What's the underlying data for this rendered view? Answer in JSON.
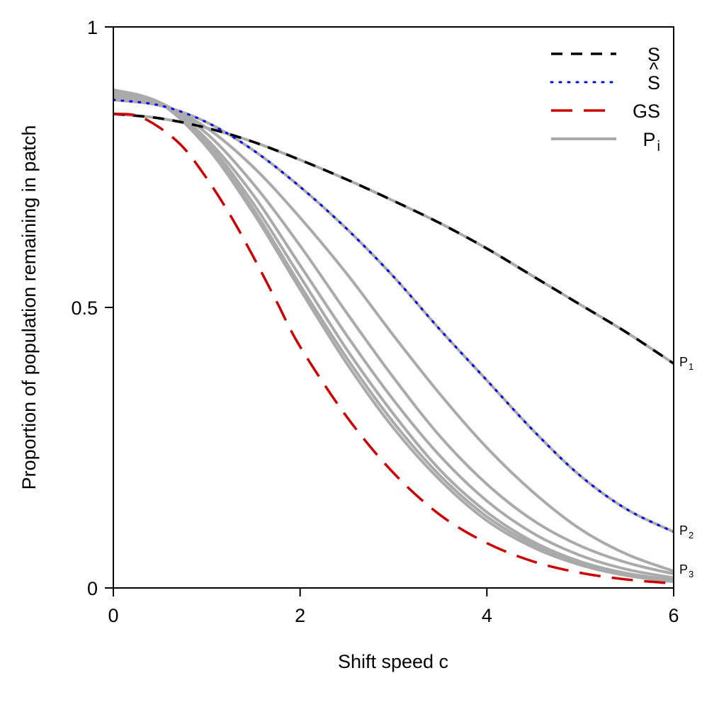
{
  "chart_data": {
    "type": "line",
    "xlabel": "Shift speed c",
    "ylabel": "Proportion of population remaining in patch",
    "xlim": [
      0,
      6
    ],
    "ylim": [
      0,
      1
    ],
    "x_ticks": [
      0,
      2,
      4,
      6
    ],
    "x_tick_labels": [
      "0",
      "2",
      "4",
      "6"
    ],
    "y_ticks": [
      0,
      0.5,
      1
    ],
    "y_tick_labels": [
      "0",
      "0.5",
      "1"
    ],
    "grid": false,
    "legend_position": "top-right",
    "legend": [
      {
        "key": "S",
        "label": "S",
        "color": "#000000",
        "style": "short-dash"
      },
      {
        "key": "Shat",
        "label": "S",
        "accent": "^",
        "color": "#0000ff",
        "style": "dotted"
      },
      {
        "key": "GS",
        "label": "GS",
        "color": "#cc0000",
        "style": "long-dash"
      },
      {
        "key": "Pi",
        "label": "P",
        "sub": "i",
        "color": "#aaaaaa",
        "style": "solid"
      }
    ],
    "end_labels": [
      {
        "base": "P",
        "sub": "1",
        "y": 0.4
      },
      {
        "base": "P",
        "sub": "2",
        "y": 0.1
      },
      {
        "base": "P",
        "sub": "3",
        "y": 0.03
      }
    ],
    "series": [
      {
        "name": "P",
        "style": "gray",
        "x": [
          0,
          0.5,
          1,
          1.5,
          2,
          2.5,
          3,
          3.5,
          4,
          4.5,
          5,
          5.5,
          6
        ],
        "values": [
          0.845,
          0.837,
          0.82,
          0.795,
          0.763,
          0.728,
          0.69,
          0.65,
          0.605,
          0.555,
          0.505,
          0.455,
          0.4
        ]
      },
      {
        "name": "P",
        "style": "gray",
        "x": [
          0,
          0.5,
          1,
          1.5,
          2,
          2.5,
          3,
          3.5,
          4,
          4.5,
          5,
          5.5,
          6
        ],
        "values": [
          0.87,
          0.86,
          0.83,
          0.78,
          0.715,
          0.64,
          0.555,
          0.46,
          0.37,
          0.28,
          0.2,
          0.14,
          0.1
        ]
      },
      {
        "name": "P",
        "style": "gray",
        "x": [
          0,
          0.5,
          1,
          1.5,
          2,
          2.5,
          3,
          3.5,
          4,
          4.5,
          5,
          5.5,
          6
        ],
        "values": [
          0.875,
          0.862,
          0.82,
          0.75,
          0.66,
          0.56,
          0.45,
          0.345,
          0.25,
          0.17,
          0.105,
          0.06,
          0.03
        ]
      },
      {
        "name": "P",
        "style": "gray",
        "x": [
          0,
          0.5,
          1,
          1.5,
          2,
          2.5,
          3,
          3.5,
          4,
          4.5,
          5,
          5.5,
          6
        ],
        "values": [
          0.88,
          0.865,
          0.81,
          0.72,
          0.61,
          0.49,
          0.375,
          0.27,
          0.185,
          0.12,
          0.075,
          0.045,
          0.025
        ]
      },
      {
        "name": "P",
        "style": "gray",
        "x": [
          0,
          0.5,
          1,
          1.5,
          2,
          2.5,
          3,
          3.5,
          4,
          4.5,
          5,
          5.5,
          6
        ],
        "values": [
          0.88,
          0.865,
          0.8,
          0.7,
          0.575,
          0.45,
          0.335,
          0.235,
          0.155,
          0.097,
          0.058,
          0.033,
          0.018
        ]
      },
      {
        "name": "P",
        "style": "gray",
        "x": [
          0,
          0.5,
          1,
          1.5,
          2,
          2.5,
          3,
          3.5,
          4,
          4.5,
          5,
          5.5,
          6
        ],
        "values": [
          0.885,
          0.865,
          0.795,
          0.685,
          0.555,
          0.425,
          0.31,
          0.21,
          0.135,
          0.082,
          0.047,
          0.026,
          0.014
        ]
      },
      {
        "name": "P",
        "style": "gray",
        "x": [
          0,
          0.5,
          1,
          1.5,
          2,
          2.5,
          3,
          3.5,
          4,
          4.5,
          5,
          5.5,
          6
        ],
        "values": [
          0.885,
          0.864,
          0.79,
          0.675,
          0.54,
          0.41,
          0.295,
          0.2,
          0.127,
          0.077,
          0.044,
          0.024,
          0.012
        ]
      },
      {
        "name": "P",
        "style": "gray",
        "x": [
          0,
          0.5,
          1,
          1.5,
          2,
          2.5,
          3,
          3.5,
          4,
          4.5,
          5,
          5.5,
          6
        ],
        "values": [
          0.888,
          0.864,
          0.786,
          0.668,
          0.532,
          0.4,
          0.285,
          0.192,
          0.12,
          0.072,
          0.041,
          0.022,
          0.011
        ]
      },
      {
        "name": "S",
        "style": "S",
        "x": [
          0,
          0.5,
          1,
          1.5,
          2,
          2.5,
          3,
          3.5,
          4,
          4.5,
          5,
          5.5,
          6
        ],
        "values": [
          0.845,
          0.837,
          0.82,
          0.795,
          0.763,
          0.728,
          0.69,
          0.65,
          0.605,
          0.555,
          0.505,
          0.455,
          0.4
        ]
      },
      {
        "name": "S",
        "style": "Shat",
        "x": [
          0,
          0.5,
          1,
          1.5,
          2,
          2.5,
          3,
          3.5,
          4,
          4.5,
          5,
          5.5,
          6
        ],
        "values": [
          0.87,
          0.86,
          0.83,
          0.78,
          0.715,
          0.64,
          0.555,
          0.46,
          0.37,
          0.28,
          0.2,
          0.14,
          0.1
        ]
      },
      {
        "name": "GS",
        "style": "GS",
        "x": [
          0,
          0.25,
          0.5,
          0.75,
          1,
          1.25,
          1.5,
          1.75,
          2,
          2.5,
          3,
          3.5,
          4,
          4.5,
          5,
          5.5,
          6
        ],
        "values": [
          0.845,
          0.842,
          0.82,
          0.785,
          0.73,
          0.665,
          0.59,
          0.51,
          0.43,
          0.305,
          0.205,
          0.13,
          0.08,
          0.047,
          0.027,
          0.015,
          0.008
        ]
      }
    ]
  }
}
